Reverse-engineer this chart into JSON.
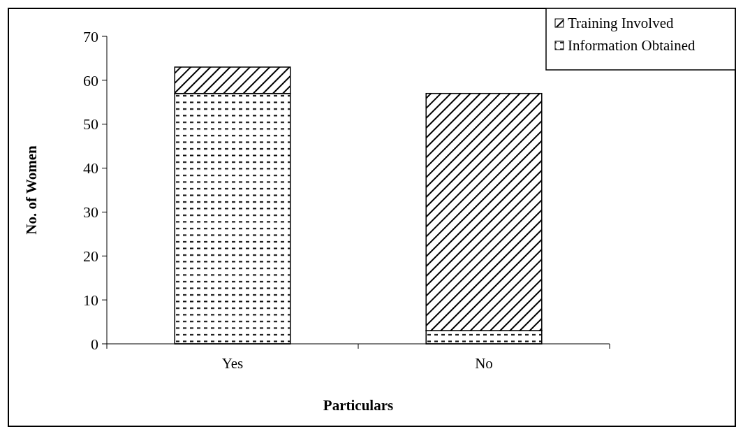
{
  "chart_data": {
    "type": "bar",
    "stacked": true,
    "xlabel": "Particulars",
    "ylabel": "No. of Women",
    "categories": [
      "Yes",
      "No"
    ],
    "series": [
      {
        "name": "Information Obtained",
        "color": "#000000",
        "values": [
          57,
          3
        ]
      },
      {
        "name": "Training Involved",
        "color": "#000000",
        "values": [
          6,
          54
        ]
      }
    ],
    "ylim": [
      0,
      70
    ],
    "yticks": [
      0,
      10,
      20,
      30,
      40,
      50,
      60,
      70
    ],
    "legend": "top right",
    "grid": false
  }
}
